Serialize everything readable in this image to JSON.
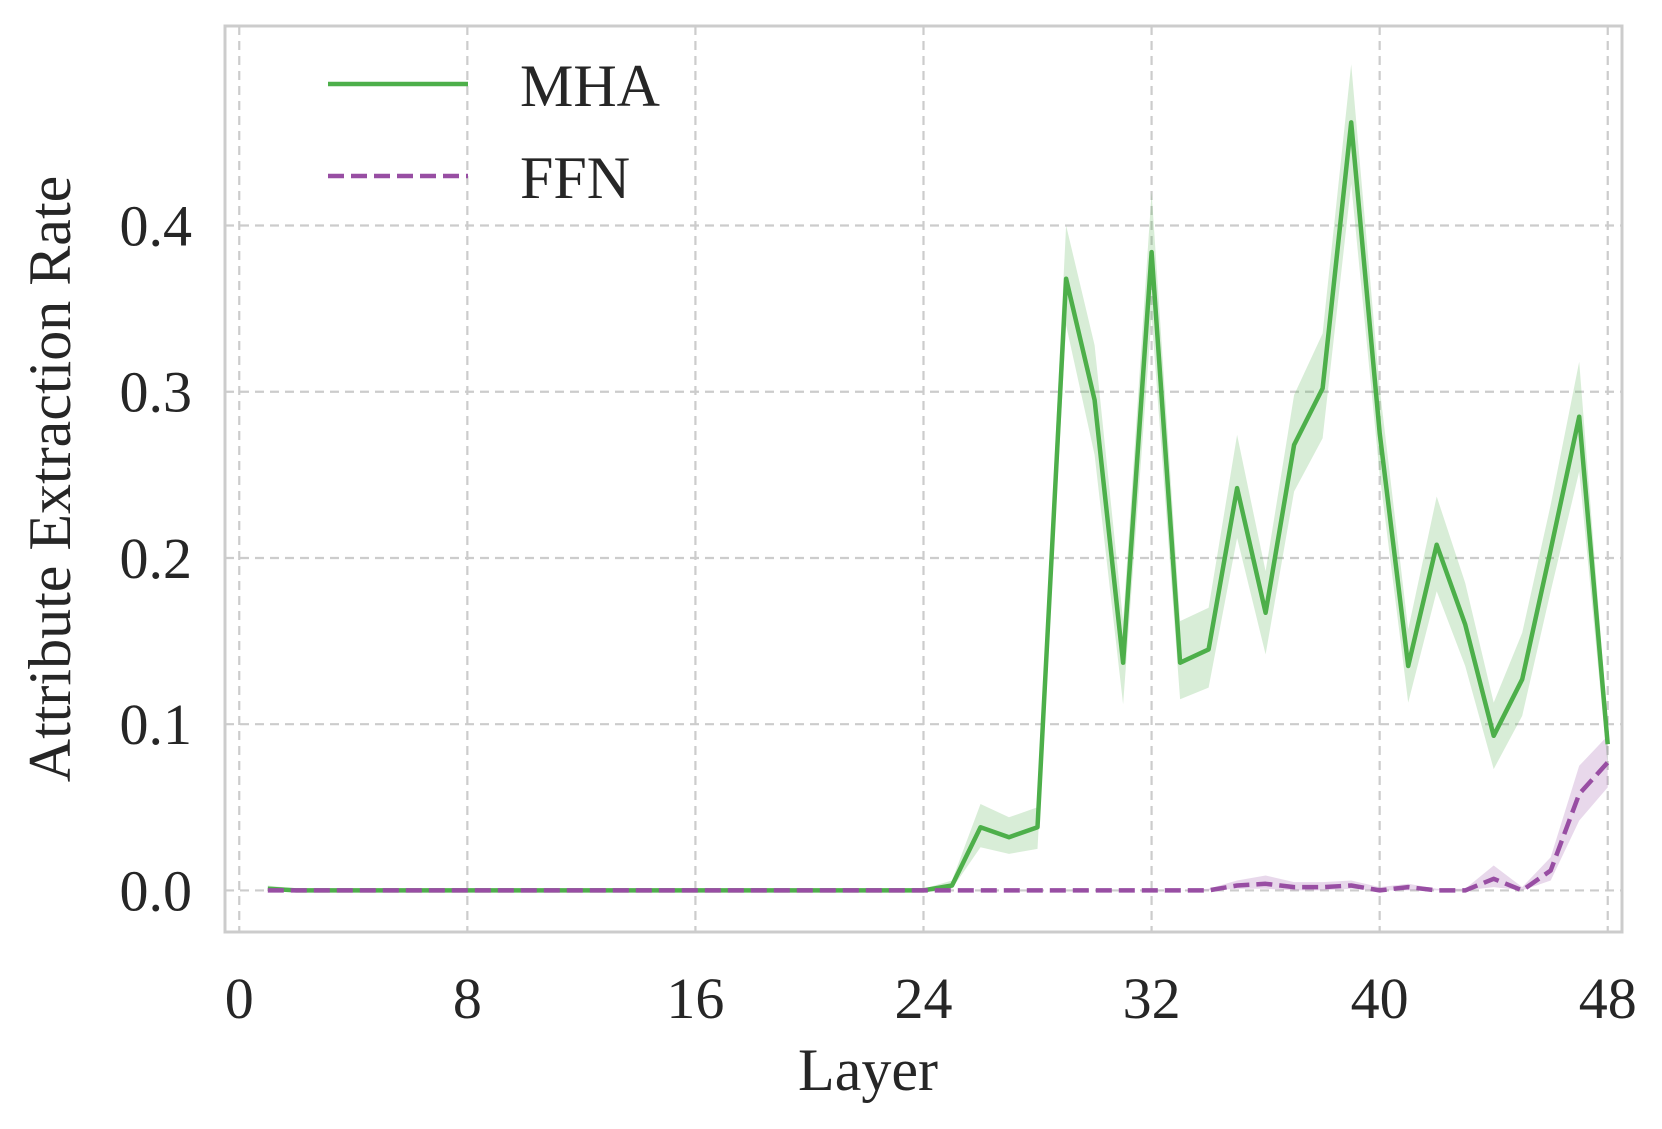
{
  "chart_data": {
    "type": "line",
    "title": "",
    "xlabel": "Layer",
    "ylabel": "Attribute Extraction Rate",
    "xlim": [
      -0.5,
      48.5
    ],
    "ylim": [
      -0.025,
      0.52
    ],
    "xticks": [
      0,
      8,
      16,
      24,
      32,
      40,
      48
    ],
    "xtick_labels": [
      "0",
      "8",
      "16",
      "24",
      "32",
      "40",
      "48"
    ],
    "yticks": [
      0.0,
      0.1,
      0.2,
      0.3,
      0.4
    ],
    "ytick_labels": [
      "0.0",
      "0.1",
      "0.2",
      "0.3",
      "0.4"
    ],
    "grid": true,
    "legend": {
      "placement": "upper-left"
    },
    "x": [
      1,
      2,
      3,
      4,
      5,
      6,
      7,
      8,
      9,
      10,
      11,
      12,
      13,
      14,
      15,
      16,
      17,
      18,
      19,
      20,
      21,
      22,
      23,
      24,
      25,
      26,
      27,
      28,
      29,
      30,
      31,
      32,
      33,
      34,
      35,
      36,
      37,
      38,
      39,
      40,
      41,
      42,
      43,
      44,
      45,
      46,
      47,
      48
    ],
    "series": [
      {
        "name": "MHA",
        "color": "#4daf4a",
        "line_style": "solid",
        "values": [
          0.001,
          0,
          0,
          0,
          0,
          0,
          0,
          0,
          0,
          0,
          0,
          0,
          0,
          0,
          0,
          0,
          0,
          0,
          0,
          0,
          0,
          0,
          0,
          0,
          0.003,
          0.038,
          0.032,
          0.038,
          0.368,
          0.295,
          0.137,
          0.384,
          0.137,
          0.145,
          0.242,
          0.167,
          0.268,
          0.302,
          0.462,
          0.275,
          0.135,
          0.208,
          0.16,
          0.093,
          0.127,
          0.205,
          0.285,
          0.088
        ],
        "band_lower": [
          0,
          0,
          0,
          0,
          0,
          0,
          0,
          0,
          0,
          0,
          0,
          0,
          0,
          0,
          0,
          0,
          0,
          0,
          0,
          0,
          0,
          0,
          0,
          0,
          0.001,
          0.026,
          0.022,
          0.025,
          0.34,
          0.262,
          0.112,
          0.345,
          0.115,
          0.122,
          0.212,
          0.142,
          0.24,
          0.272,
          0.425,
          0.25,
          0.113,
          0.18,
          0.135,
          0.073,
          0.105,
          0.18,
          0.252,
          0.075
        ],
        "band_upper": [
          0.003,
          0.001,
          0,
          0,
          0,
          0,
          0,
          0,
          0,
          0,
          0,
          0,
          0,
          0,
          0,
          0,
          0,
          0,
          0,
          0,
          0,
          0,
          0,
          0.001,
          0.006,
          0.052,
          0.044,
          0.05,
          0.4,
          0.328,
          0.162,
          0.42,
          0.162,
          0.17,
          0.274,
          0.192,
          0.298,
          0.335,
          0.497,
          0.302,
          0.157,
          0.237,
          0.185,
          0.113,
          0.155,
          0.232,
          0.318,
          0.1
        ]
      },
      {
        "name": "FFN",
        "color": "#984ea3",
        "line_style": "dashed",
        "values": [
          0,
          0,
          0,
          0,
          0,
          0,
          0,
          0,
          0,
          0,
          0,
          0,
          0,
          0,
          0,
          0,
          0,
          0,
          0,
          0,
          0,
          0,
          0,
          0,
          0,
          0,
          0,
          0,
          0,
          0,
          0,
          0,
          0,
          0,
          0.003,
          0.004,
          0.002,
          0.002,
          0.003,
          0,
          0.002,
          0,
          0,
          0.007,
          0,
          0.012,
          0.058,
          0.077
        ],
        "band_lower": [
          0,
          0,
          0,
          0,
          0,
          0,
          0,
          0,
          0,
          0,
          0,
          0,
          0,
          0,
          0,
          0,
          0,
          0,
          0,
          0,
          0,
          0,
          0,
          0,
          0,
          0,
          0,
          0,
          0,
          0,
          0,
          0,
          0,
          0,
          0.001,
          0.001,
          0,
          0,
          0.001,
          0,
          0,
          0,
          0,
          0.002,
          0,
          0.006,
          0.042,
          0.062
        ],
        "band_upper": [
          0,
          0,
          0,
          0,
          0,
          0,
          0,
          0,
          0,
          0,
          0,
          0,
          0,
          0,
          0,
          0,
          0,
          0,
          0,
          0,
          0,
          0,
          0,
          0,
          0,
          0,
          0,
          0,
          0,
          0,
          0,
          0,
          0,
          0.001,
          0.006,
          0.009,
          0.005,
          0.005,
          0.006,
          0.002,
          0.004,
          0.001,
          0.001,
          0.015,
          0.002,
          0.02,
          0.075,
          0.093
        ]
      }
    ]
  }
}
